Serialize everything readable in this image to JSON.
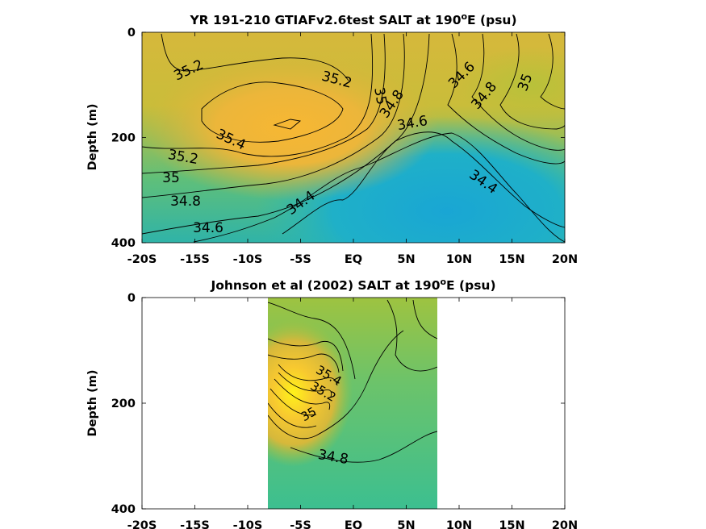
{
  "chart_data": [
    {
      "type": "contour",
      "title_main": "YR 191-210 GTIAFv2.6test SALT at 190",
      "title_sup": "o",
      "title_end": "E (psu)",
      "ylabel": "Depth (m)",
      "x_ticks": [
        "-20S",
        "-15S",
        "-10S",
        "-5S",
        "EQ",
        "5N",
        "10N",
        "15N",
        "20N"
      ],
      "x_range": [
        -20,
        20
      ],
      "y_ticks": [
        "0",
        "200",
        "400"
      ],
      "y_range": [
        0,
        400
      ],
      "y_reversed": true,
      "contour_labels": [
        {
          "text": "35.2",
          "x": -15,
          "y": 85
        },
        {
          "text": "35.2",
          "x": -3,
          "y": 100
        },
        {
          "text": "35",
          "x": 1.5,
          "y": 115
        },
        {
          "text": "34.8",
          "x": 3.5,
          "y": 140
        },
        {
          "text": "34.6",
          "x": 5.5,
          "y": 170
        },
        {
          "text": "34.6",
          "x": 12,
          "y": 95
        },
        {
          "text": "34.8",
          "x": 13,
          "y": 120
        },
        {
          "text": "35",
          "x": 16,
          "y": 100
        },
        {
          "text": "35.4",
          "x": -13,
          "y": 205
        },
        {
          "text": "35.2",
          "x": -16.5,
          "y": 240
        },
        {
          "text": "35",
          "x": -18,
          "y": 275
        },
        {
          "text": "34.8",
          "x": -17,
          "y": 315
        },
        {
          "text": "34.6",
          "x": -15,
          "y": 360
        },
        {
          "text": "34.4",
          "x": -4.5,
          "y": 330
        },
        {
          "text": "34.4",
          "x": 13,
          "y": 275
        }
      ]
    },
    {
      "type": "contour",
      "title_main": "Johnson et al (2002) SALT at 190",
      "title_sup": "o",
      "title_end": "E (psu)",
      "ylabel": "Depth (m)",
      "x_ticks": [
        "-20S",
        "-15S",
        "-10S",
        "-5S",
        "EQ",
        "5N",
        "10N",
        "15N",
        "20N"
      ],
      "x_range": [
        -20,
        20
      ],
      "y_ticks": [
        "0",
        "200",
        "400"
      ],
      "y_range": [
        0,
        400
      ],
      "y_reversed": true,
      "data_x_range": [
        -8,
        8
      ],
      "contour_labels": [
        {
          "text": "35.4",
          "x": -2.5,
          "y": 160
        },
        {
          "text": "35.2",
          "x": -3.2,
          "y": 185
        },
        {
          "text": "35",
          "x": -4.5,
          "y": 220
        },
        {
          "text": "34.8",
          "x": -2,
          "y": 300
        }
      ]
    }
  ]
}
